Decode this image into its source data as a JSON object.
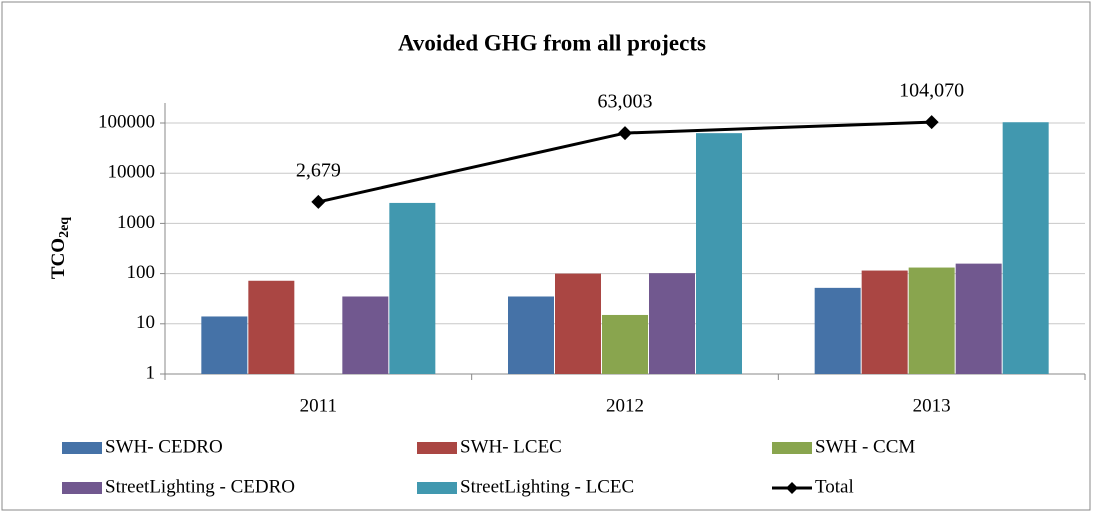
{
  "chart_data": {
    "type": "bar",
    "title": "Avoided GHG from all projects",
    "y_label": {
      "main": "TCO",
      "sub": "2eq"
    },
    "log_scale": true,
    "grid": true,
    "categories": [
      "2011",
      "2012",
      "2013"
    ],
    "ylim": [
      1,
      100000
    ],
    "yticks": [
      1,
      10,
      100,
      1000,
      10000,
      100000
    ],
    "series": [
      {
        "name": "SWH- CEDRO",
        "type": "bar",
        "color": "#4572a7",
        "values": [
          14,
          35,
          52
        ]
      },
      {
        "name": "SWH- LCEC",
        "type": "bar",
        "color": "#aa4643",
        "values": [
          72,
          100,
          115
        ]
      },
      {
        "name": "SWH - CCM",
        "type": "bar",
        "color": "#89a54e",
        "values": [
          null,
          15,
          132
        ]
      },
      {
        "name": "StreetLighting - CEDRO",
        "type": "bar",
        "color": "#71588f",
        "values": [
          35,
          102,
          158
        ]
      },
      {
        "name": "StreetLighting - LCEC",
        "type": "bar",
        "color": "#4198af",
        "values": [
          2558,
          62751,
          103613
        ]
      },
      {
        "name": "Total",
        "type": "line",
        "color": "#000000",
        "values": [
          2679,
          63003,
          104070
        ],
        "value_labels": [
          "2,679",
          "63,003",
          "104,070"
        ]
      }
    ]
  }
}
